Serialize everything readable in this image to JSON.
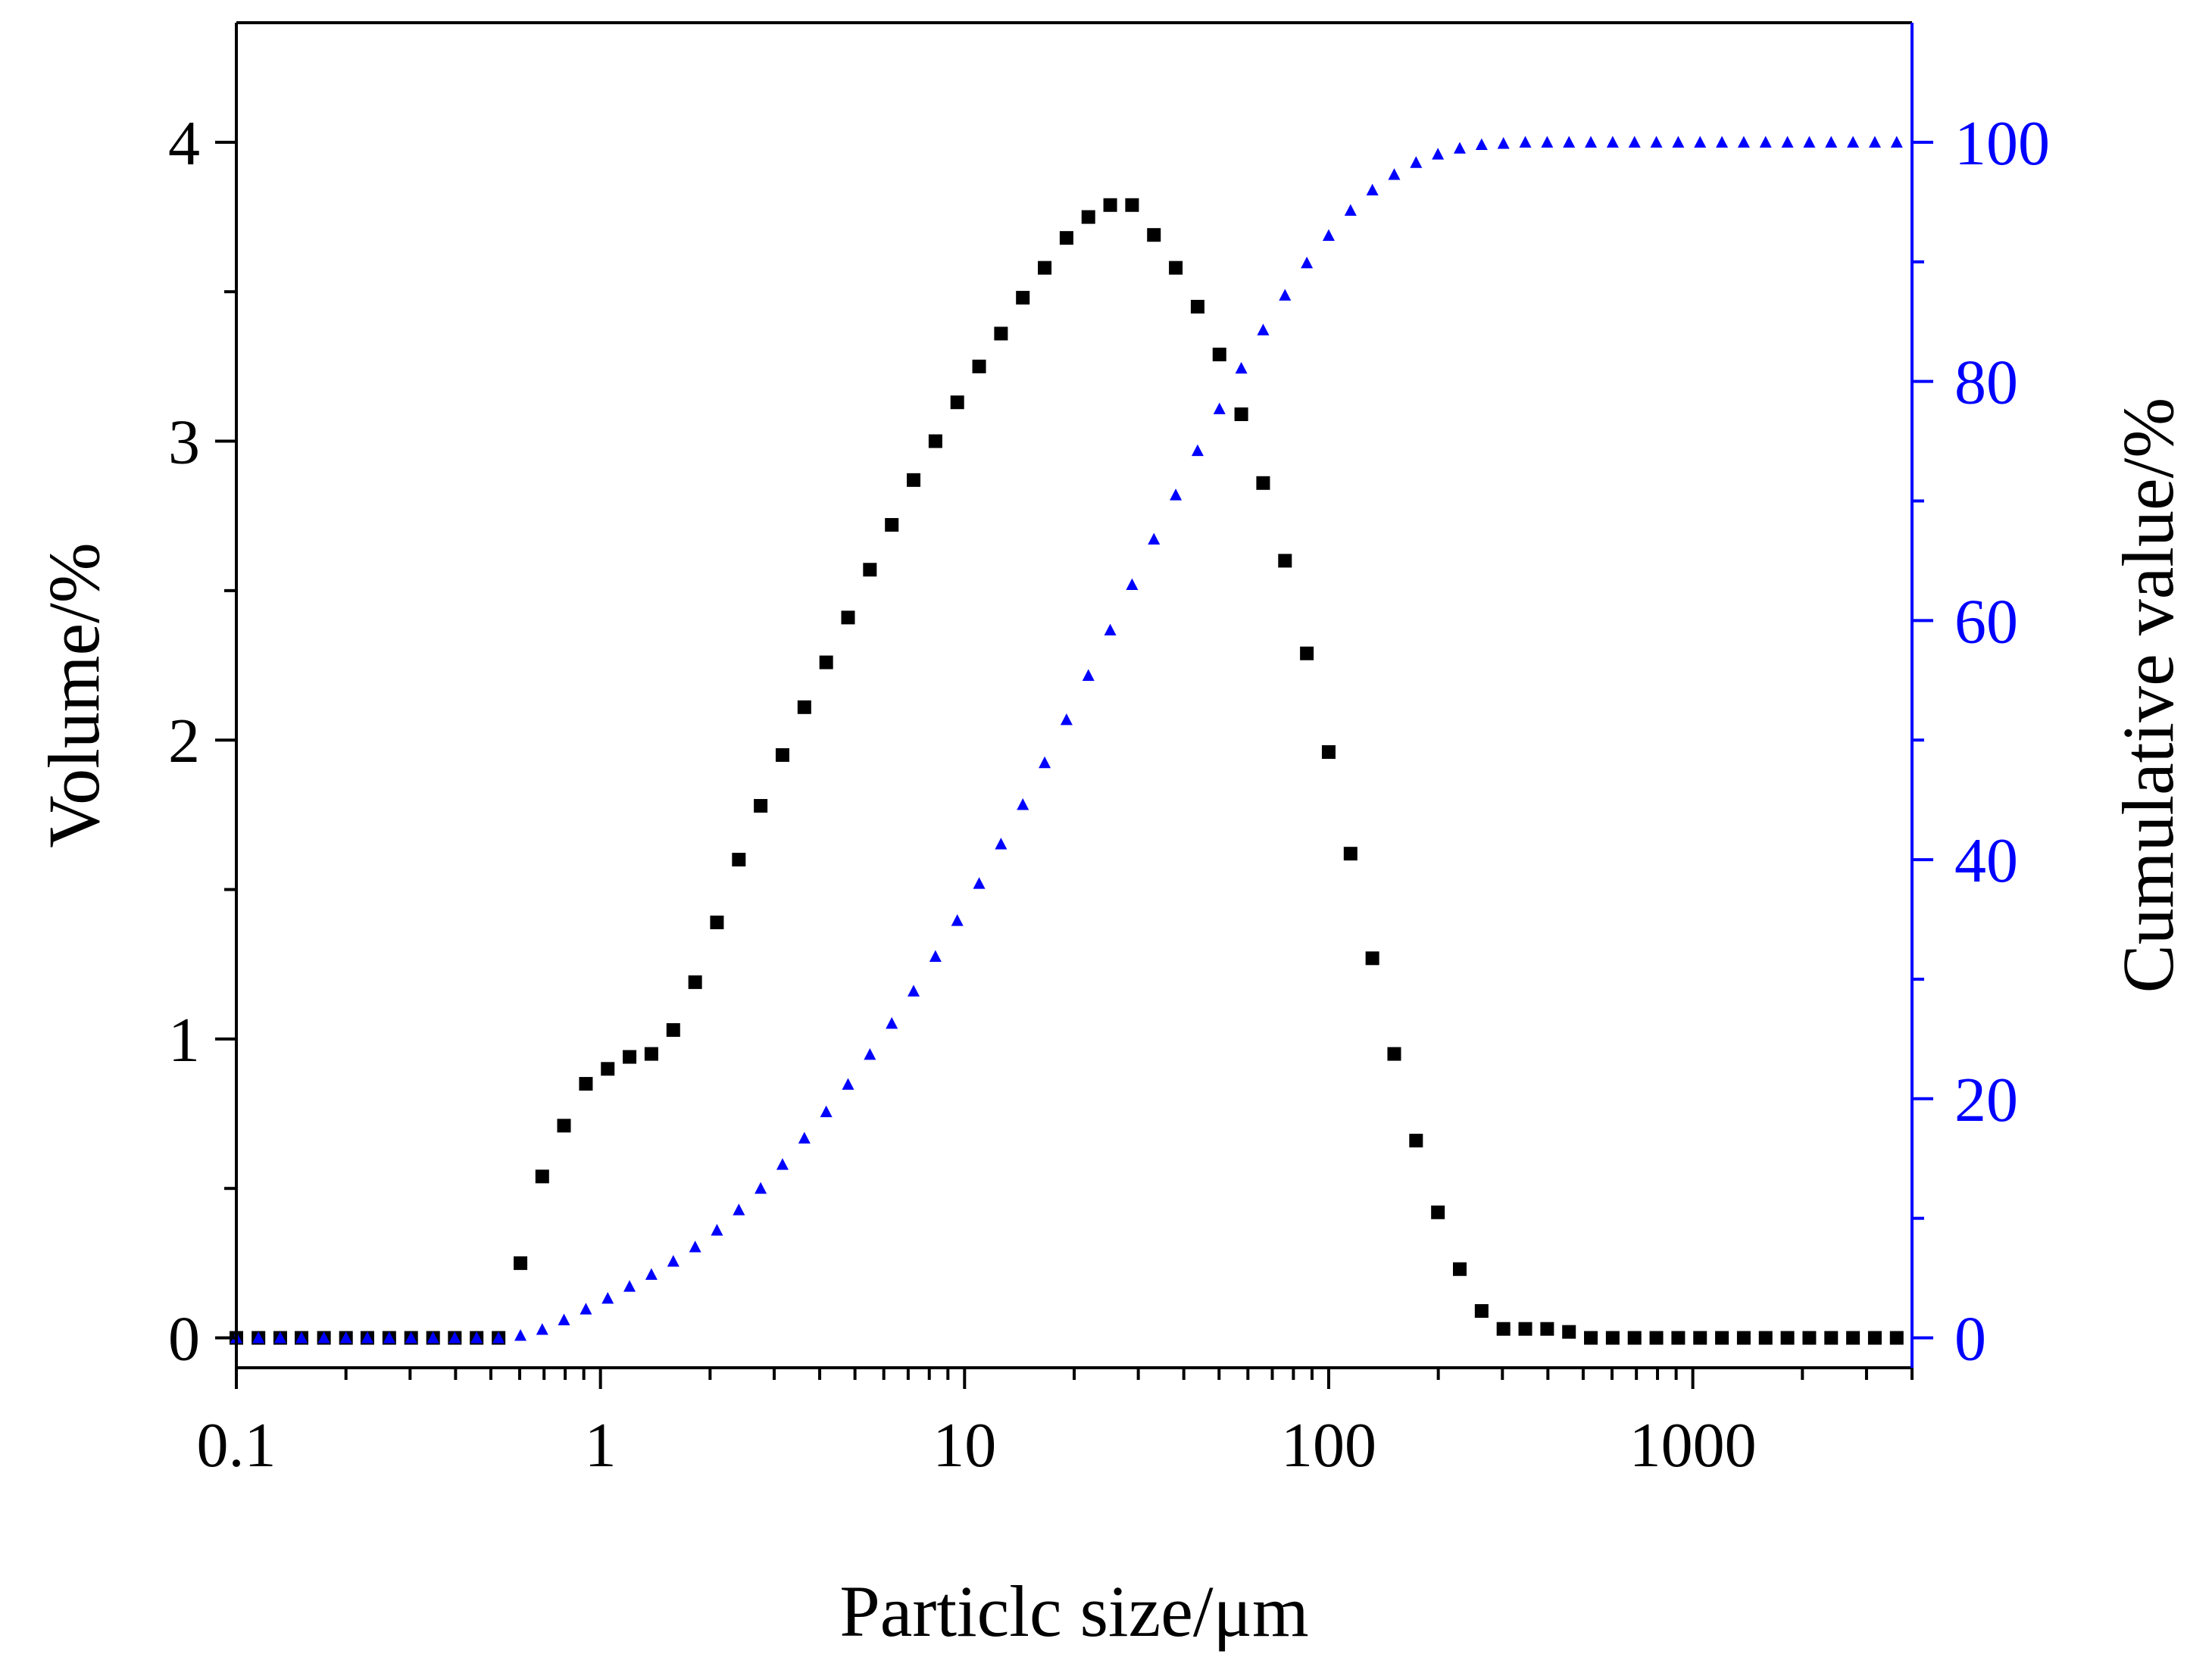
{
  "chart_data": {
    "type": "scatter",
    "title": "",
    "xlabel": "Particlc size/μm",
    "ylabel": "Volume/%",
    "y2label": "Cumulative value/%",
    "xscale": "log",
    "xlim": [
      0.1,
      4000
    ],
    "ylim": [
      -0.1,
      4.4
    ],
    "y2lim": [
      -2.5,
      110
    ],
    "xticks": [
      0.1,
      1,
      10,
      100,
      1000
    ],
    "xtick_labels": [
      "0.1",
      "1",
      "10",
      "100",
      "1000"
    ],
    "yticks": [
      0,
      1,
      2,
      3,
      4
    ],
    "ytick_labels": [
      "0",
      "1",
      "2",
      "3",
      "4"
    ],
    "y2ticks": [
      0,
      20,
      40,
      60,
      80,
      100
    ],
    "y2tick_labels": [
      "0",
      "20",
      "40",
      "60",
      "80",
      "100"
    ],
    "grid": false,
    "legend": "none",
    "colors": {
      "volume": "#000000",
      "cumulative": "#0000ff",
      "axis": "#000000",
      "right_axis": "#0000ff"
    },
    "x": [
      0.1,
      0.115,
      0.132,
      0.151,
      0.174,
      0.2,
      0.229,
      0.263,
      0.302,
      0.347,
      0.398,
      0.457,
      0.525,
      0.603,
      0.692,
      0.794,
      0.912,
      1.047,
      1.202,
      1.38,
      1.585,
      1.82,
      2.089,
      2.399,
      2.754,
      3.162,
      3.631,
      4.169,
      4.786,
      5.495,
      6.31,
      7.244,
      8.318,
      9.55,
      10.965,
      12.589,
      14.454,
      16.596,
      19.055,
      21.878,
      25.119,
      28.84,
      33.113,
      38.019,
      43.652,
      50.119,
      57.544,
      66.069,
      75.858,
      87.096,
      100,
      114.82,
      131.83,
      151.36,
      173.78,
      199.53,
      229.09,
      263.03,
      302,
      346.74,
      398.11,
      457.09,
      524.81,
      602.56,
      691.83,
      794.33,
      912.01,
      1047.1,
      1202.3,
      1380.4,
      1584.9,
      1819.7,
      2089.3,
      2398.8,
      2754.2,
      3162.3,
      3630.8
    ],
    "series": [
      {
        "name": "Volume/%",
        "axis": "left",
        "marker": "square",
        "color": "#000000",
        "values": [
          0,
          0,
          0,
          0,
          0,
          0,
          0,
          0,
          0,
          0,
          0,
          0,
          0,
          0.25,
          0.54,
          0.71,
          0.85,
          0.9,
          0.94,
          0.95,
          1.03,
          1.19,
          1.39,
          1.6,
          1.78,
          1.95,
          2.11,
          2.26,
          2.41,
          2.57,
          2.72,
          2.87,
          3,
          3.13,
          3.25,
          3.36,
          3.48,
          3.58,
          3.68,
          3.75,
          3.79,
          3.79,
          3.69,
          3.58,
          3.45,
          3.29,
          3.09,
          2.86,
          2.6,
          2.29,
          1.96,
          1.62,
          1.27,
          0.95,
          0.66,
          0.42,
          0.23,
          0.09,
          0.03,
          0.03,
          0.03,
          0.02,
          0,
          0,
          0,
          0,
          0,
          0,
          0,
          0,
          0,
          0,
          0,
          0,
          0,
          0,
          0
        ]
      },
      {
        "name": "Cumulative value/%",
        "axis": "right",
        "marker": "triangle",
        "color": "#0000ff",
        "values": [
          0,
          0,
          0,
          0,
          0,
          0,
          0,
          0,
          0,
          0,
          0,
          0,
          0,
          0.2,
          0.7,
          1.5,
          2.4,
          3.3,
          4.3,
          5.3,
          6.4,
          7.6,
          9,
          10.7,
          12.5,
          14.5,
          16.7,
          18.9,
          21.2,
          23.7,
          26.3,
          29,
          31.9,
          34.9,
          38,
          41.3,
          44.6,
          48.1,
          51.7,
          55.4,
          59.2,
          63,
          66.8,
          70.5,
          74.2,
          77.7,
          81.1,
          84.3,
          87.2,
          89.9,
          92.2,
          94.3,
          96,
          97.3,
          98.3,
          99,
          99.5,
          99.8,
          99.9,
          100,
          100,
          100,
          100,
          100,
          100,
          100,
          100,
          100,
          100,
          100,
          100,
          100,
          100,
          100,
          100,
          100,
          100
        ]
      }
    ]
  }
}
